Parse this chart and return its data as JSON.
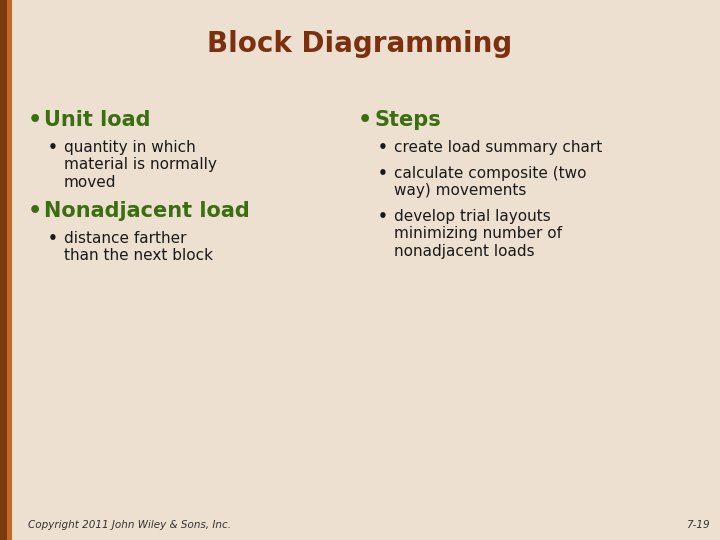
{
  "title": "Block Diagramming",
  "title_color": "#7B3010",
  "title_fontsize": 20,
  "background_color": "#EDE0D0",
  "left_bar_dark": "#7B3A10",
  "left_bar_light": "#C86820",
  "bullet_color_main": "#3A6E10",
  "bullet_color_sub": "#1A1A1A",
  "left_col_bullets": [
    {
      "level": 1,
      "text": "Unit load"
    },
    {
      "level": 2,
      "text": "quantity in which\nmaterial is normally\nmoved"
    },
    {
      "level": 1,
      "text": "Nonadjacent load"
    },
    {
      "level": 2,
      "text": "distance farther\nthan the next block"
    }
  ],
  "right_col_bullets": [
    {
      "level": 1,
      "text": "Steps"
    },
    {
      "level": 2,
      "text": "create load summary chart"
    },
    {
      "level": 2,
      "text": "calculate composite (two\nway) movements"
    },
    {
      "level": 2,
      "text": "develop trial layouts\nminimizing number of\nnonadjacent loads"
    }
  ],
  "footer_left": "Copyright 2011 John Wiley & Sons, Inc.",
  "footer_right": "7-19",
  "footer_fontsize": 7.5,
  "level1_fontsize": 15,
  "sub_fontsize": 11
}
